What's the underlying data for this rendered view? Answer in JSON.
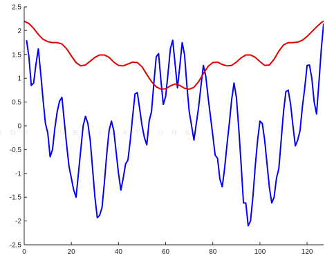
{
  "chart_data": {
    "type": "line",
    "title": "",
    "xlabel": "",
    "ylabel": "",
    "xlim": [
      0,
      127
    ],
    "ylim": [
      -2.5,
      2.5
    ],
    "x_ticks": [
      0,
      20,
      40,
      60,
      80,
      100,
      120
    ],
    "y_ticks": [
      -2.5,
      -2,
      -1.5,
      -1,
      -0.5,
      0,
      0.5,
      1,
      1.5,
      2,
      2.5
    ],
    "x_tick_labels": [
      "0",
      "20",
      "40",
      "60",
      "80",
      "100",
      "120"
    ],
    "y_tick_labels": [
      "-2.5",
      "-2",
      "-1.5",
      "-1",
      "-0.5",
      "0",
      "0.5",
      "1",
      "1.5",
      "2",
      "2.5"
    ],
    "grid": false,
    "series": [
      {
        "color": "#0000ff",
        "points": [
          [
            1,
            1.8
          ],
          [
            2,
            1.45
          ],
          [
            3,
            0.85
          ],
          [
            4,
            0.9
          ],
          [
            5,
            1.3
          ],
          [
            6,
            1.62
          ],
          [
            7,
            1.1
          ],
          [
            8,
            0.55
          ],
          [
            9,
            0.05
          ],
          [
            10,
            -0.15
          ],
          [
            11,
            -0.65
          ],
          [
            12,
            -0.5
          ],
          [
            13,
            -0.05
          ],
          [
            14,
            0.3
          ],
          [
            15,
            0.52
          ],
          [
            16,
            0.6
          ],
          [
            17,
            0.1
          ],
          [
            18,
            -0.4
          ],
          [
            19,
            -0.85
          ],
          [
            20,
            -1.1
          ],
          [
            21,
            -1.35
          ],
          [
            22,
            -1.5
          ],
          [
            23,
            -1.0
          ],
          [
            24,
            -0.5
          ],
          [
            25,
            0.0
          ],
          [
            26,
            0.2
          ],
          [
            27,
            0.05
          ],
          [
            28,
            -0.3
          ],
          [
            29,
            -0.9
          ],
          [
            30,
            -1.5
          ],
          [
            31,
            -1.93
          ],
          [
            32,
            -1.88
          ],
          [
            33,
            -1.72
          ],
          [
            34,
            -1.2
          ],
          [
            35,
            -0.6
          ],
          [
            36,
            -0.1
          ],
          [
            37,
            0.1
          ],
          [
            38,
            -0.1
          ],
          [
            39,
            -0.55
          ],
          [
            40,
            -1.0
          ],
          [
            41,
            -1.35
          ],
          [
            42,
            -1.1
          ],
          [
            43,
            -0.8
          ],
          [
            44,
            -0.72
          ],
          [
            45,
            -0.3
          ],
          [
            46,
            0.2
          ],
          [
            47,
            0.67
          ],
          [
            48,
            0.7
          ],
          [
            49,
            0.35
          ],
          [
            50,
            0.0
          ],
          [
            51,
            -0.25
          ],
          [
            52,
            -0.4
          ],
          [
            53,
            0.1
          ],
          [
            54,
            0.3
          ],
          [
            55,
            0.9
          ],
          [
            56,
            1.45
          ],
          [
            57,
            1.52
          ],
          [
            58,
            0.95
          ],
          [
            59,
            0.45
          ],
          [
            60,
            0.62
          ],
          [
            61,
            1.1
          ],
          [
            62,
            1.62
          ],
          [
            63,
            1.8
          ],
          [
            64,
            1.3
          ],
          [
            65,
            0.8
          ],
          [
            66,
            1.25
          ],
          [
            67,
            1.75
          ],
          [
            68,
            1.5
          ],
          [
            69,
            0.85
          ],
          [
            70,
            0.3
          ],
          [
            71,
            0.0
          ],
          [
            72,
            -0.3
          ],
          [
            73,
            0.05
          ],
          [
            74,
            0.4
          ],
          [
            75,
            0.85
          ],
          [
            76,
            1.27
          ],
          [
            77,
            1.05
          ],
          [
            78,
            0.6
          ],
          [
            79,
            0.2
          ],
          [
            80,
            -0.2
          ],
          [
            81,
            -0.62
          ],
          [
            82,
            -0.68
          ],
          [
            83,
            -1.12
          ],
          [
            84,
            -1.28
          ],
          [
            85,
            -0.9
          ],
          [
            86,
            -0.4
          ],
          [
            87,
            0.05
          ],
          [
            88,
            0.55
          ],
          [
            89,
            0.9
          ],
          [
            90,
            0.6
          ],
          [
            91,
            -0.05
          ],
          [
            92,
            -0.8
          ],
          [
            93,
            -1.62
          ],
          [
            94,
            -1.62
          ],
          [
            95,
            -2.1
          ],
          [
            96,
            -2.0
          ],
          [
            97,
            -1.5
          ],
          [
            98,
            -0.85
          ],
          [
            99,
            -0.3
          ],
          [
            100,
            0.1
          ],
          [
            101,
            0.05
          ],
          [
            102,
            -0.3
          ],
          [
            103,
            -0.8
          ],
          [
            104,
            -1.3
          ],
          [
            105,
            -1.62
          ],
          [
            106,
            -1.5
          ],
          [
            107,
            -1.1
          ],
          [
            108,
            -0.9
          ],
          [
            109,
            -0.3
          ],
          [
            110,
            0.3
          ],
          [
            111,
            0.72
          ],
          [
            112,
            0.75
          ],
          [
            113,
            0.45
          ],
          [
            114,
            0.0
          ],
          [
            115,
            -0.42
          ],
          [
            116,
            -0.3
          ],
          [
            117,
            -0.1
          ],
          [
            118,
            0.4
          ],
          [
            119,
            0.8
          ],
          [
            120,
            1.27
          ],
          [
            121,
            1.28
          ],
          [
            122,
            1.0
          ],
          [
            123,
            0.5
          ],
          [
            124,
            0.25
          ],
          [
            125,
            0.9
          ],
          [
            126,
            1.6
          ],
          [
            127,
            2.15
          ]
        ]
      },
      {
        "color": "#e00000",
        "points": [
          [
            0,
            2.2
          ],
          [
            2,
            2.15
          ],
          [
            4,
            2.05
          ],
          [
            6,
            1.92
          ],
          [
            8,
            1.82
          ],
          [
            10,
            1.77
          ],
          [
            12,
            1.75
          ],
          [
            14,
            1.75
          ],
          [
            16,
            1.72
          ],
          [
            18,
            1.62
          ],
          [
            20,
            1.47
          ],
          [
            22,
            1.33
          ],
          [
            24,
            1.26
          ],
          [
            26,
            1.28
          ],
          [
            28,
            1.36
          ],
          [
            30,
            1.44
          ],
          [
            32,
            1.49
          ],
          [
            34,
            1.49
          ],
          [
            36,
            1.44
          ],
          [
            38,
            1.34
          ],
          [
            40,
            1.27
          ],
          [
            42,
            1.26
          ],
          [
            44,
            1.3
          ],
          [
            46,
            1.34
          ],
          [
            48,
            1.33
          ],
          [
            50,
            1.24
          ],
          [
            52,
            1.08
          ],
          [
            54,
            0.93
          ],
          [
            56,
            0.82
          ],
          [
            58,
            0.77
          ],
          [
            60,
            0.78
          ],
          [
            62,
            0.84
          ],
          [
            64,
            0.88
          ],
          [
            66,
            0.85
          ],
          [
            68,
            0.79
          ],
          [
            70,
            0.77
          ],
          [
            72,
            0.81
          ],
          [
            74,
            0.93
          ],
          [
            76,
            1.1
          ],
          [
            78,
            1.25
          ],
          [
            80,
            1.33
          ],
          [
            82,
            1.34
          ],
          [
            84,
            1.29
          ],
          [
            86,
            1.26
          ],
          [
            88,
            1.27
          ],
          [
            90,
            1.34
          ],
          [
            92,
            1.43
          ],
          [
            94,
            1.49
          ],
          [
            96,
            1.49
          ],
          [
            98,
            1.44
          ],
          [
            100,
            1.35
          ],
          [
            102,
            1.27
          ],
          [
            104,
            1.28
          ],
          [
            106,
            1.4
          ],
          [
            108,
            1.57
          ],
          [
            110,
            1.7
          ],
          [
            112,
            1.75
          ],
          [
            114,
            1.75
          ],
          [
            116,
            1.76
          ],
          [
            118,
            1.8
          ],
          [
            120,
            1.88
          ],
          [
            122,
            1.98
          ],
          [
            124,
            2.08
          ],
          [
            126,
            2.17
          ],
          [
            127,
            2.2
          ]
        ]
      }
    ]
  }
}
